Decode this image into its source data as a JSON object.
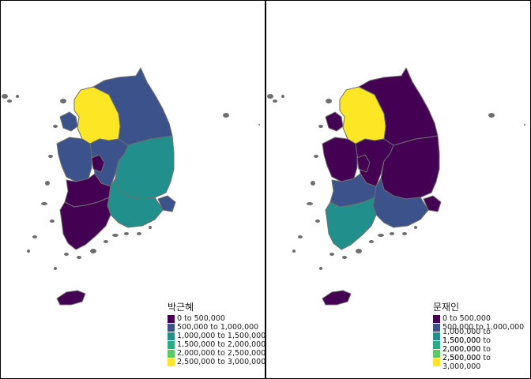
{
  "palette": [
    "#440154",
    "#3b528b",
    "#21908c",
    "#27ad81",
    "#5ec962",
    "#fde725"
  ],
  "outline_color": "#6e6e6e",
  "legend_labels": [
    "0 to 500,000",
    "500,000 to 1,000,000",
    "1,000,000 to 1,500,000",
    "1,500,000 to 2,000,000",
    "2,000,000 to 2,500,000",
    "2,500,000 to 3,000,000"
  ],
  "panels": [
    {
      "title": "박근혜",
      "regions": {
        "gyeonggi": 5,
        "gangwon": 1,
        "chungnam": 1,
        "chungbuk": 1,
        "gyeongbuk": 2,
        "gyeongnam": 2,
        "jeonbuk": 0,
        "jeonnam": 0,
        "jeju": 0,
        "incheon": 1,
        "daejeon": 0,
        "ulsan": 1
      }
    },
    {
      "title": "문재인",
      "regions": {
        "gyeonggi": 5,
        "gangwon": 0,
        "chungnam": 0,
        "chungbuk": 0,
        "gyeongbuk": 0,
        "gyeongnam": 1,
        "jeonbuk": 1,
        "jeonnam": 2,
        "jeju": 0,
        "incheon": 0,
        "daejeon": 0,
        "ulsan": 0
      }
    }
  ]
}
